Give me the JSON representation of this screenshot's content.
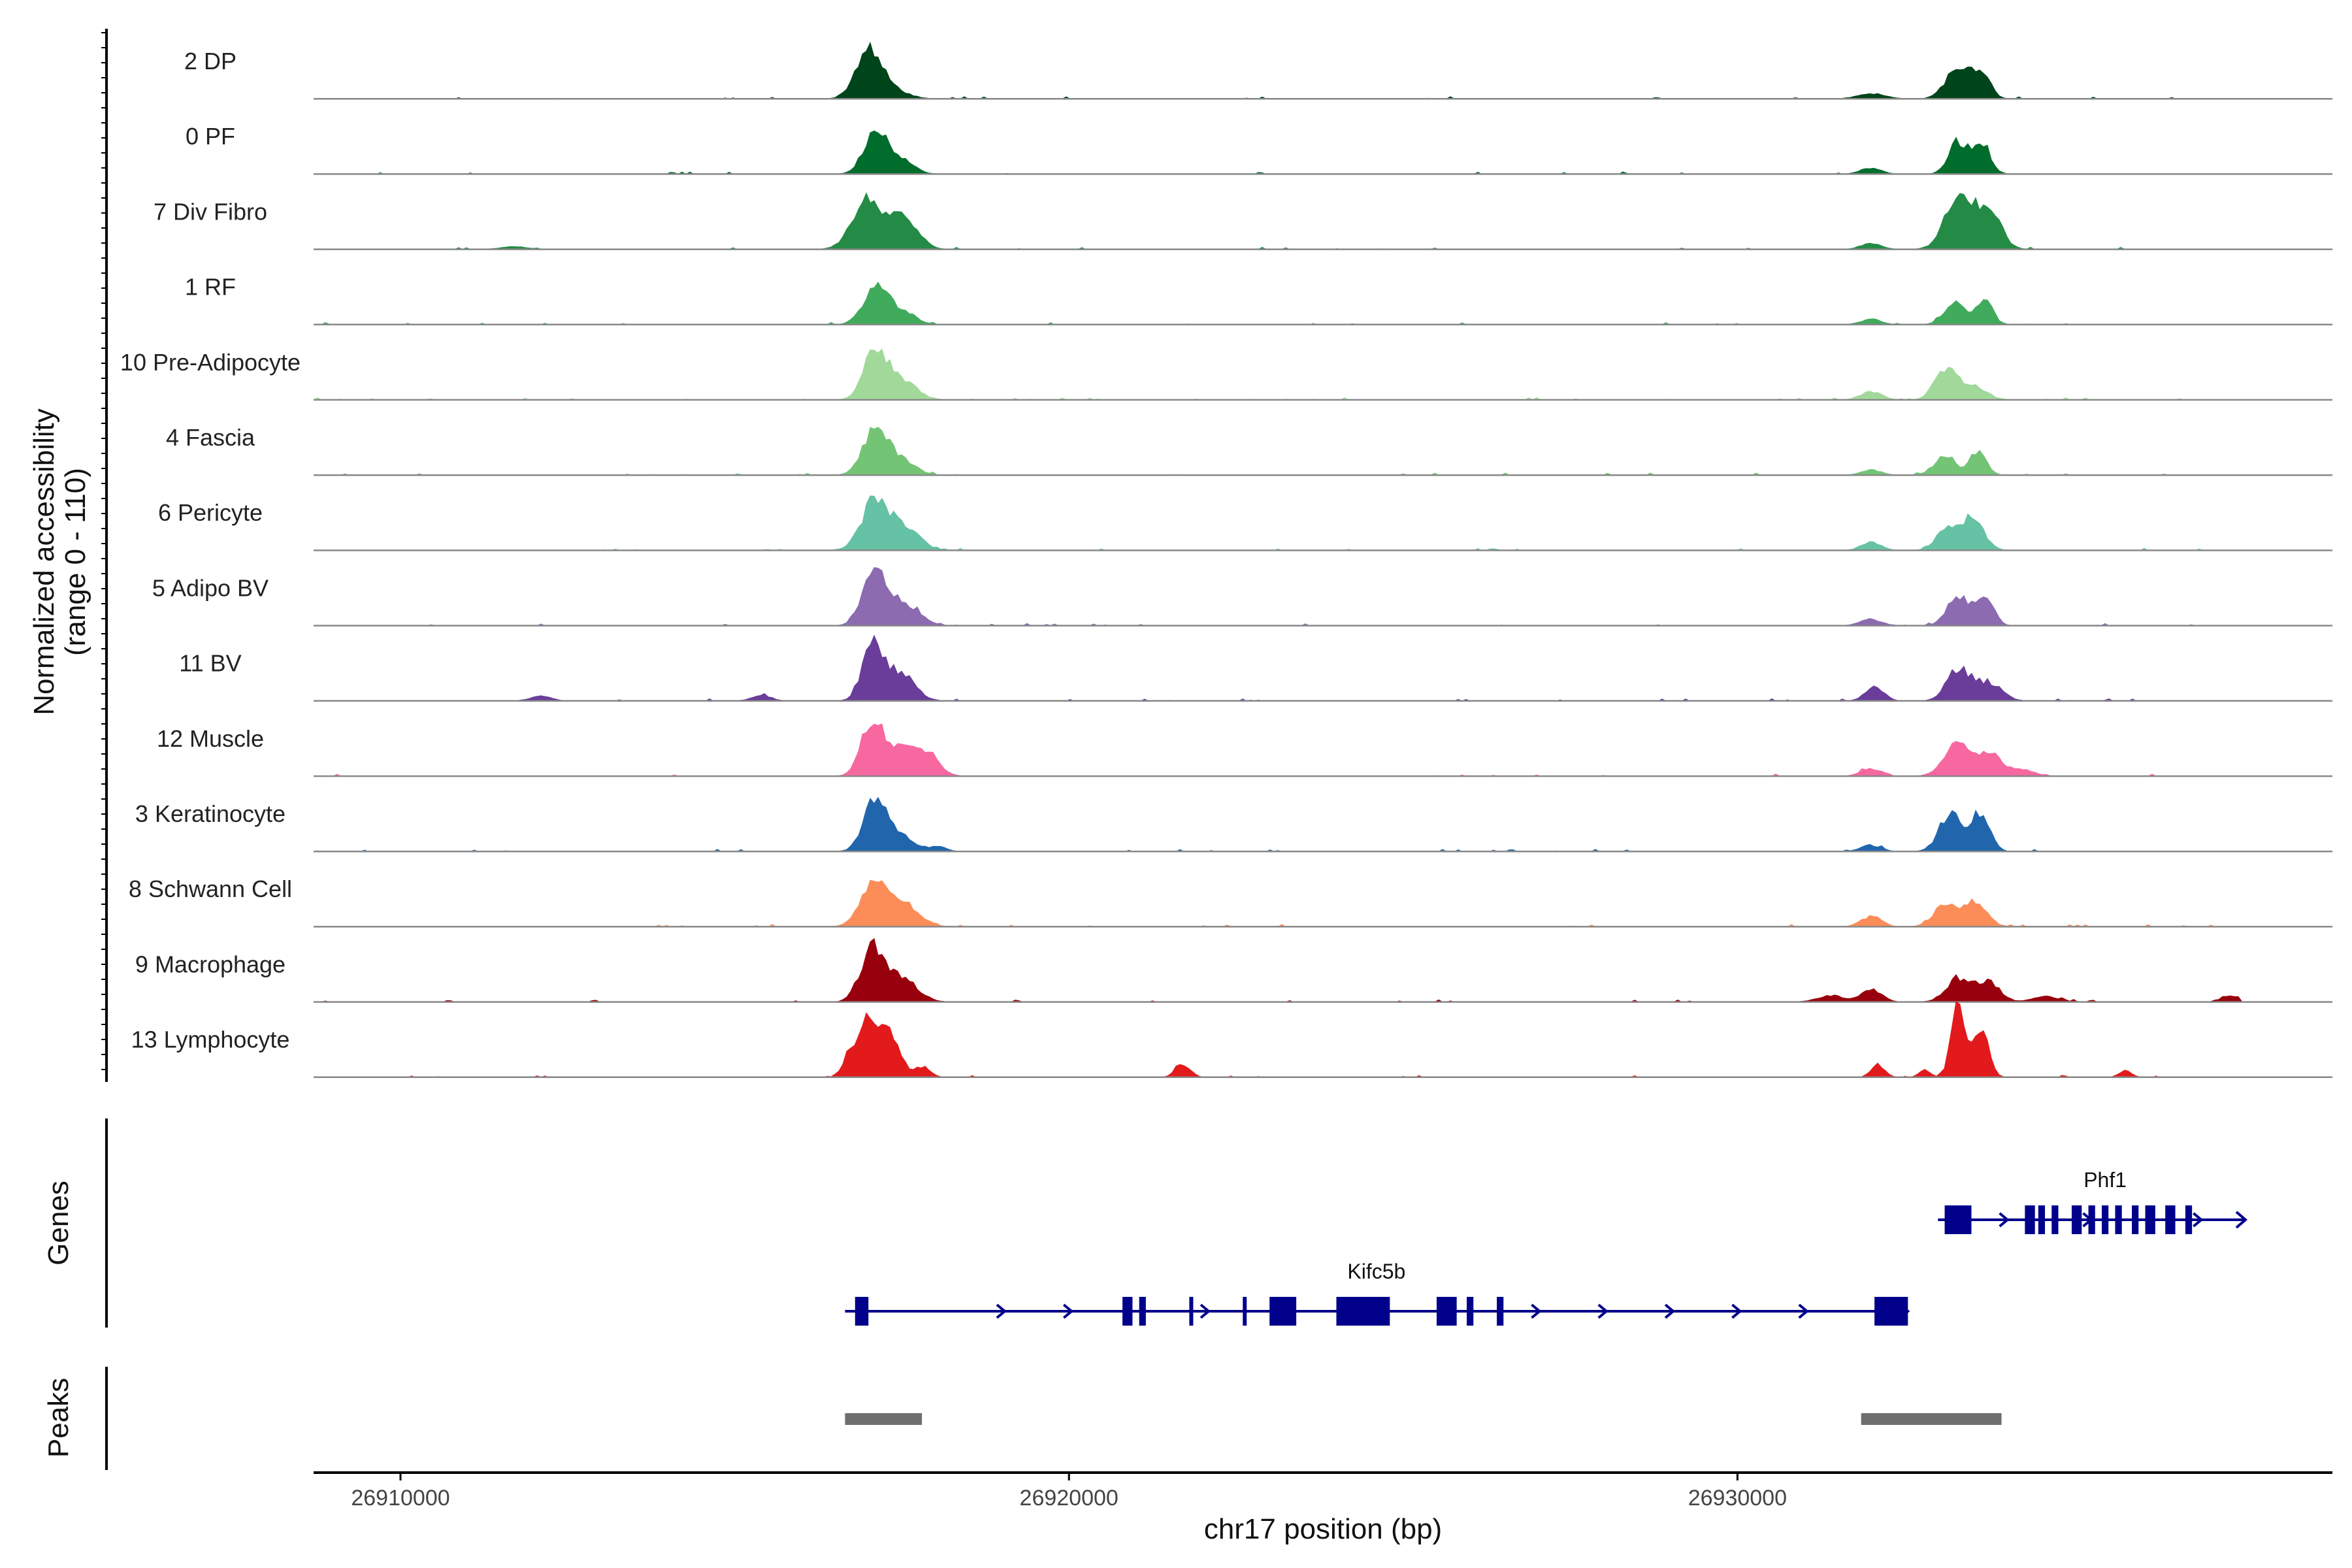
{
  "chart_data": {
    "type": "area",
    "xlabel": "chr17 position (bp)",
    "ylabel_line1": "Normalized accessibility",
    "ylabel_line2": "(range 0 - 110)",
    "yrange": [
      0,
      110
    ],
    "xlim": [
      26908700,
      26938900
    ],
    "xticks": [
      26910000,
      26920000,
      26930000
    ],
    "xtick_labels": [
      "26910000",
      "26920000",
      "26930000"
    ],
    "series": [
      {
        "name": "2 DP",
        "color": "#00441b",
        "peaks": [
          [
            26916980,
            0.8,
            180
          ],
          [
            26917250,
            0.25,
            250
          ],
          [
            26933300,
            0.6,
            180
          ],
          [
            26933650,
            0.5,
            130
          ],
          [
            26932000,
            0.1,
            200
          ]
        ]
      },
      {
        "name": "0 PF",
        "color": "#006d2c",
        "peaks": [
          [
            26917100,
            0.8,
            170
          ],
          [
            26917450,
            0.3,
            200
          ],
          [
            26933300,
            0.6,
            140
          ],
          [
            26933650,
            0.6,
            130
          ],
          [
            26932000,
            0.12,
            150
          ]
        ]
      },
      {
        "name": "7 Div Fibro",
        "color": "#238b45",
        "peaks": [
          [
            26917000,
            0.95,
            230
          ],
          [
            26917550,
            0.55,
            200
          ],
          [
            26933300,
            0.95,
            200
          ],
          [
            26933750,
            0.8,
            180
          ],
          [
            26932000,
            0.12,
            150
          ],
          [
            26911700,
            0.05,
            200
          ]
        ]
      },
      {
        "name": "1 RF",
        "color": "#41ab5d",
        "peaks": [
          [
            26917100,
            0.7,
            180
          ],
          [
            26917500,
            0.25,
            200
          ],
          [
            26933250,
            0.4,
            160
          ],
          [
            26933700,
            0.45,
            120
          ],
          [
            26932000,
            0.1,
            150
          ]
        ]
      },
      {
        "name": "10 Pre-Adipocyte",
        "color": "#a1d99b",
        "peaks": [
          [
            26917100,
            0.95,
            170
          ],
          [
            26917500,
            0.35,
            220
          ],
          [
            26933100,
            0.55,
            160
          ],
          [
            26933500,
            0.3,
            200
          ],
          [
            26932000,
            0.15,
            160
          ]
        ]
      },
      {
        "name": "4 Fascia",
        "color": "#74c476",
        "peaks": [
          [
            26917100,
            0.85,
            180
          ],
          [
            26917500,
            0.3,
            200
          ],
          [
            26933100,
            0.35,
            160
          ],
          [
            26933600,
            0.45,
            120
          ],
          [
            26932000,
            0.1,
            150
          ]
        ]
      },
      {
        "name": "6 Pericyte",
        "color": "#66c2a4",
        "peaks": [
          [
            26917100,
            0.95,
            200
          ],
          [
            26917550,
            0.4,
            220
          ],
          [
            26933100,
            0.35,
            150
          ],
          [
            26933500,
            0.65,
            170
          ],
          [
            26932000,
            0.15,
            150
          ]
        ]
      },
      {
        "name": "5 Adipo BV",
        "color": "#8c6bb1",
        "peaks": [
          [
            26917100,
            1.0,
            180
          ],
          [
            26917550,
            0.4,
            220
          ],
          [
            26933300,
            0.55,
            160
          ],
          [
            26933700,
            0.55,
            130
          ],
          [
            26932000,
            0.12,
            160
          ]
        ]
      },
      {
        "name": "11 BV",
        "color": "#6a3d9a",
        "peaks": [
          [
            26917050,
            1.0,
            150
          ],
          [
            26917450,
            0.55,
            220
          ],
          [
            26933300,
            0.6,
            170
          ],
          [
            26933750,
            0.35,
            200
          ],
          [
            26932050,
            0.25,
            140
          ],
          [
            26912100,
            0.1,
            150
          ],
          [
            26915400,
            0.1,
            150
          ],
          [
            26938000,
            0.08,
            140
          ]
        ]
      },
      {
        "name": "12 Muscle",
        "color": "#f768a1",
        "peaks": [
          [
            26917050,
            1.0,
            160
          ],
          [
            26917550,
            0.65,
            250
          ],
          [
            26917950,
            0.25,
            150
          ],
          [
            26933300,
            0.65,
            200
          ],
          [
            26933800,
            0.4,
            180
          ],
          [
            26932000,
            0.15,
            150
          ],
          [
            26934300,
            0.12,
            150
          ]
        ]
      },
      {
        "name": "3 Keratinocyte",
        "color": "#2166ac",
        "peaks": [
          [
            26917100,
            0.95,
            170
          ],
          [
            26917450,
            0.3,
            200
          ],
          [
            26933200,
            0.75,
            170
          ],
          [
            26933650,
            0.75,
            130
          ],
          [
            26932000,
            0.12,
            150
          ],
          [
            26918050,
            0.1,
            120
          ]
        ]
      },
      {
        "name": "8 Schwann Cell",
        "color": "#fc8d59",
        "peaks": [
          [
            26917100,
            0.85,
            200
          ],
          [
            26917550,
            0.4,
            220
          ],
          [
            26933100,
            0.4,
            170
          ],
          [
            26933550,
            0.5,
            170
          ],
          [
            26932000,
            0.2,
            150
          ]
        ]
      },
      {
        "name": "9 Macrophage",
        "color": "#99000d",
        "peaks": [
          [
            26917050,
            1.0,
            170
          ],
          [
            26917500,
            0.45,
            230
          ],
          [
            26933300,
            0.45,
            180
          ],
          [
            26933750,
            0.4,
            170
          ],
          [
            26932000,
            0.25,
            150
          ],
          [
            26931400,
            0.12,
            200
          ],
          [
            26934600,
            0.1,
            200
          ],
          [
            26937400,
            0.12,
            140
          ]
        ]
      },
      {
        "name": "13 Lymphocyte",
        "color": "#e31a1c",
        "peaks": [
          [
            26916950,
            1.0,
            130
          ],
          [
            26917300,
            0.85,
            160
          ],
          [
            26916700,
            0.35,
            100
          ],
          [
            26917800,
            0.2,
            120
          ],
          [
            26921700,
            0.25,
            110
          ],
          [
            26933300,
            1.4,
            100
          ],
          [
            26933650,
            1.0,
            110
          ],
          [
            26932100,
            0.25,
            100
          ],
          [
            26932800,
            0.15,
            80
          ],
          [
            26935800,
            0.12,
            90
          ]
        ]
      }
    ],
    "genes": [
      {
        "name": "Kifc5b",
        "start": 26916650,
        "end": 26932550,
        "color": "#00008b",
        "strand": "+",
        "exons": [
          [
            26916800,
            26917000
          ],
          [
            26920800,
            26920950
          ],
          [
            26921050,
            26921150
          ],
          [
            26921800,
            26921850
          ],
          [
            26922600,
            26922650
          ],
          [
            26923000,
            26923400
          ],
          [
            26924000,
            26924800
          ],
          [
            26925500,
            26925800
          ],
          [
            26925950,
            26926050
          ],
          [
            26926400,
            26926500
          ],
          [
            26932050,
            26932550
          ]
        ],
        "arrows": [
          26919000,
          26920000,
          26922050,
          26927000,
          26928000,
          26929000,
          26930000,
          26931000
        ]
      },
      {
        "name": "Phf1",
        "start": 26933000,
        "end": 26937600,
        "color": "#00008b",
        "strand": "+",
        "exons": [
          [
            26933100,
            26933500
          ],
          [
            26934300,
            26934450
          ],
          [
            26934500,
            26934600
          ],
          [
            26934700,
            26934800
          ],
          [
            26935000,
            26935150
          ],
          [
            26935250,
            26935350
          ],
          [
            26935450,
            26935550
          ],
          [
            26935650,
            26935750
          ],
          [
            26935900,
            26936000
          ],
          [
            26936100,
            26936250
          ],
          [
            26936400,
            26936550
          ],
          [
            26936700,
            26936800
          ]
        ],
        "arrows": [
          26934000,
          26935250,
          26936900
        ]
      }
    ],
    "peaks": [
      {
        "start": 26916650,
        "end": 26917800,
        "color": "#6e6e6e"
      },
      {
        "start": 26931850,
        "end": 26933950,
        "color": "#6e6e6e"
      }
    ]
  },
  "panels": {
    "genes_label": "Genes",
    "peaks_label": "Peaks"
  }
}
